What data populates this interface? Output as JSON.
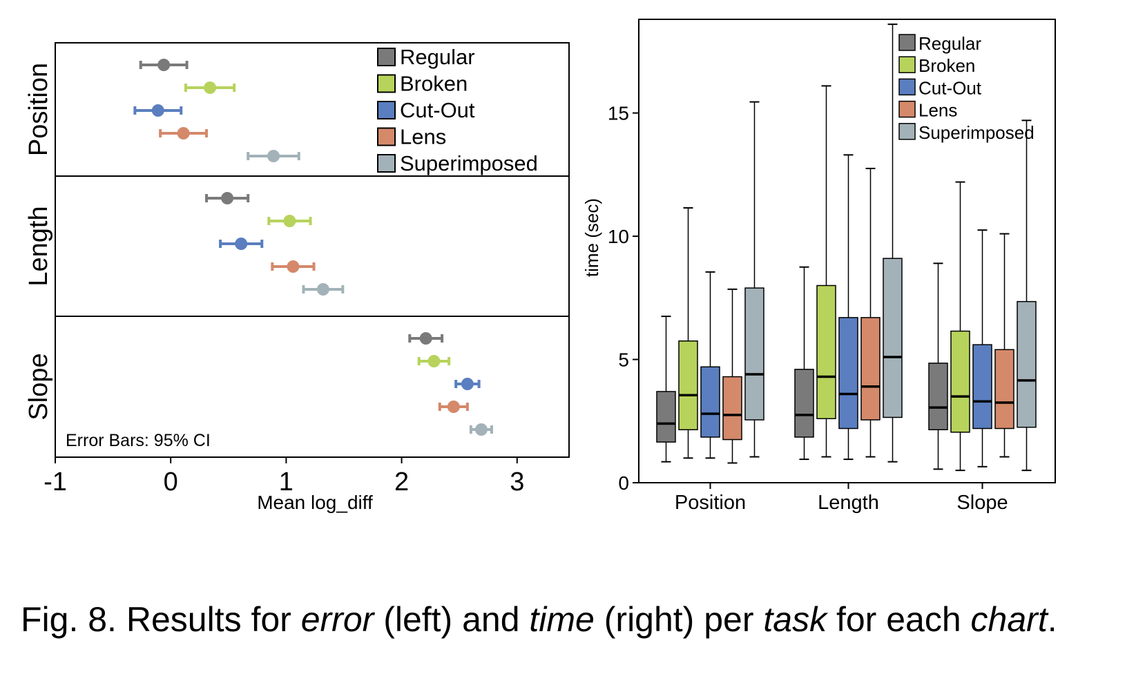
{
  "caption": {
    "prefix": "Fig. 8.",
    "t1": "Results for ",
    "e1": "error",
    "t2": " (left) and ",
    "e2": "time",
    "t3": " (right) per ",
    "e3": "task",
    "t4": " for each ",
    "e4": "chart",
    "t5": "."
  },
  "colors": {
    "Regular": "#7a7a7a",
    "Broken": "#b7d35c",
    "Cut-Out": "#5a7ebf",
    "Lens": "#d4896a",
    "Superimposed": "#a3b2b8"
  },
  "chart_data": [
    {
      "type": "scatter",
      "subtype": "dot-plot-with-error-bars",
      "xlabel": "Mean log_diff",
      "ylabel": "",
      "xlim": [
        -1,
        3.45
      ],
      "xticks": [
        -1,
        0,
        1,
        2,
        3
      ],
      "tasks": [
        "Position",
        "Length",
        "Slope"
      ],
      "annotation": "Error Bars: 95% CI",
      "legend": [
        "Regular",
        "Broken",
        "Cut-Out",
        "Lens",
        "Superimposed"
      ],
      "legend_position": "top-right",
      "series": [
        {
          "name": "Regular",
          "points": [
            {
              "task": "Position",
              "mean": -0.06,
              "lo": -0.26,
              "hi": 0.14
            },
            {
              "task": "Length",
              "mean": 0.49,
              "lo": 0.31,
              "hi": 0.67
            },
            {
              "task": "Slope",
              "mean": 2.21,
              "lo": 2.07,
              "hi": 2.35
            }
          ]
        },
        {
          "name": "Broken",
          "points": [
            {
              "task": "Position",
              "mean": 0.34,
              "lo": 0.13,
              "hi": 0.55
            },
            {
              "task": "Length",
              "mean": 1.03,
              "lo": 0.85,
              "hi": 1.21
            },
            {
              "task": "Slope",
              "mean": 2.28,
              "lo": 2.15,
              "hi": 2.41
            }
          ]
        },
        {
          "name": "Cut-Out",
          "points": [
            {
              "task": "Position",
              "mean": -0.11,
              "lo": -0.31,
              "hi": 0.09
            },
            {
              "task": "Length",
              "mean": 0.61,
              "lo": 0.43,
              "hi": 0.79
            },
            {
              "task": "Slope",
              "mean": 2.57,
              "lo": 2.47,
              "hi": 2.67
            }
          ]
        },
        {
          "name": "Lens",
          "points": [
            {
              "task": "Position",
              "mean": 0.11,
              "lo": -0.09,
              "hi": 0.31
            },
            {
              "task": "Length",
              "mean": 1.06,
              "lo": 0.88,
              "hi": 1.24
            },
            {
              "task": "Slope",
              "mean": 2.45,
              "lo": 2.33,
              "hi": 2.57
            }
          ]
        },
        {
          "name": "Superimposed",
          "points": [
            {
              "task": "Position",
              "mean": 0.89,
              "lo": 0.67,
              "hi": 1.11
            },
            {
              "task": "Length",
              "mean": 1.32,
              "lo": 1.15,
              "hi": 1.49
            },
            {
              "task": "Slope",
              "mean": 2.69,
              "lo": 2.6,
              "hi": 2.78
            }
          ]
        }
      ]
    },
    {
      "type": "boxplot",
      "xlabel": "",
      "ylabel": "time (sec)",
      "ylim": [
        0,
        18.8
      ],
      "yticks": [
        0,
        5,
        10,
        15
      ],
      "categories": [
        "Position",
        "Length",
        "Slope"
      ],
      "legend": [
        "Regular",
        "Broken",
        "Cut-Out",
        "Lens",
        "Superimposed"
      ],
      "legend_position": "top-right",
      "series": [
        {
          "name": "Regular",
          "boxes": [
            {
              "min": 0.85,
              "q1": 1.65,
              "median": 2.4,
              "q3": 3.7,
              "max": 6.75
            },
            {
              "min": 0.95,
              "q1": 1.85,
              "median": 2.75,
              "q3": 4.6,
              "max": 8.75
            },
            {
              "min": 0.55,
              "q1": 2.15,
              "median": 3.05,
              "q3": 4.85,
              "max": 8.9
            }
          ]
        },
        {
          "name": "Broken",
          "boxes": [
            {
              "min": 1.0,
              "q1": 2.15,
              "median": 3.55,
              "q3": 5.75,
              "max": 11.15
            },
            {
              "min": 1.05,
              "q1": 2.6,
              "median": 4.3,
              "q3": 8.0,
              "max": 16.1
            },
            {
              "min": 0.5,
              "q1": 2.05,
              "median": 3.5,
              "q3": 6.15,
              "max": 12.2
            }
          ]
        },
        {
          "name": "Cut-Out",
          "boxes": [
            {
              "min": 1.0,
              "q1": 1.85,
              "median": 2.8,
              "q3": 4.7,
              "max": 8.55
            },
            {
              "min": 0.95,
              "q1": 2.2,
              "median": 3.6,
              "q3": 6.7,
              "max": 13.3
            },
            {
              "min": 0.65,
              "q1": 2.2,
              "median": 3.3,
              "q3": 5.6,
              "max": 10.25
            }
          ]
        },
        {
          "name": "Lens",
          "boxes": [
            {
              "min": 0.8,
              "q1": 1.75,
              "median": 2.75,
              "q3": 4.3,
              "max": 7.85
            },
            {
              "min": 1.05,
              "q1": 2.55,
              "median": 3.9,
              "q3": 6.7,
              "max": 12.75
            },
            {
              "min": 1.05,
              "q1": 2.2,
              "median": 3.25,
              "q3": 5.4,
              "max": 10.1
            }
          ]
        },
        {
          "name": "Superimposed",
          "boxes": [
            {
              "min": 1.05,
              "q1": 2.55,
              "median": 4.4,
              "q3": 7.9,
              "max": 15.45
            },
            {
              "min": 0.85,
              "q1": 2.65,
              "median": 5.1,
              "q3": 9.1,
              "max": 18.6
            },
            {
              "min": 0.5,
              "q1": 2.25,
              "median": 4.15,
              "q3": 7.35,
              "max": 14.7
            }
          ]
        }
      ]
    }
  ]
}
